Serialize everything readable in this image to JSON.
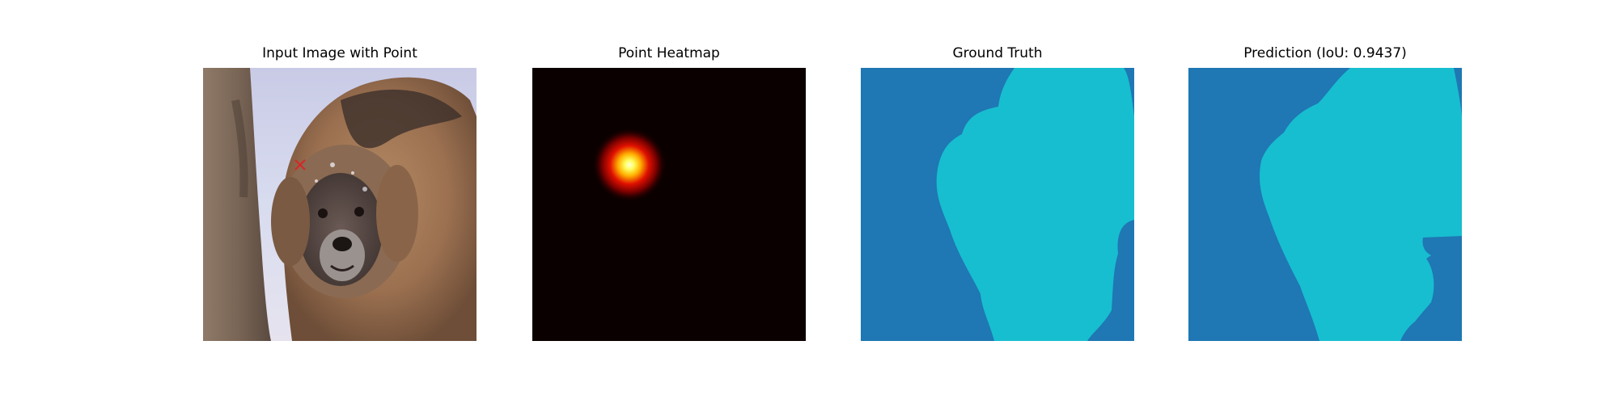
{
  "figure": {
    "panels": [
      {
        "title": "Input Image with Point",
        "content": "dog-photo",
        "marker": "red-x"
      },
      {
        "title": "Point Heatmap",
        "content": "gaussian-heatmap"
      },
      {
        "title": "Ground Truth",
        "content": "segmentation-mask"
      },
      {
        "title": "Prediction (IoU: 0.9437)",
        "content": "segmentation-mask"
      }
    ],
    "iou": 0.9437
  },
  "colors": {
    "mask_background": "#1f77b4",
    "mask_foreground": "#17becf",
    "heatmap_background": "#0b0000",
    "marker": "#d62728"
  }
}
